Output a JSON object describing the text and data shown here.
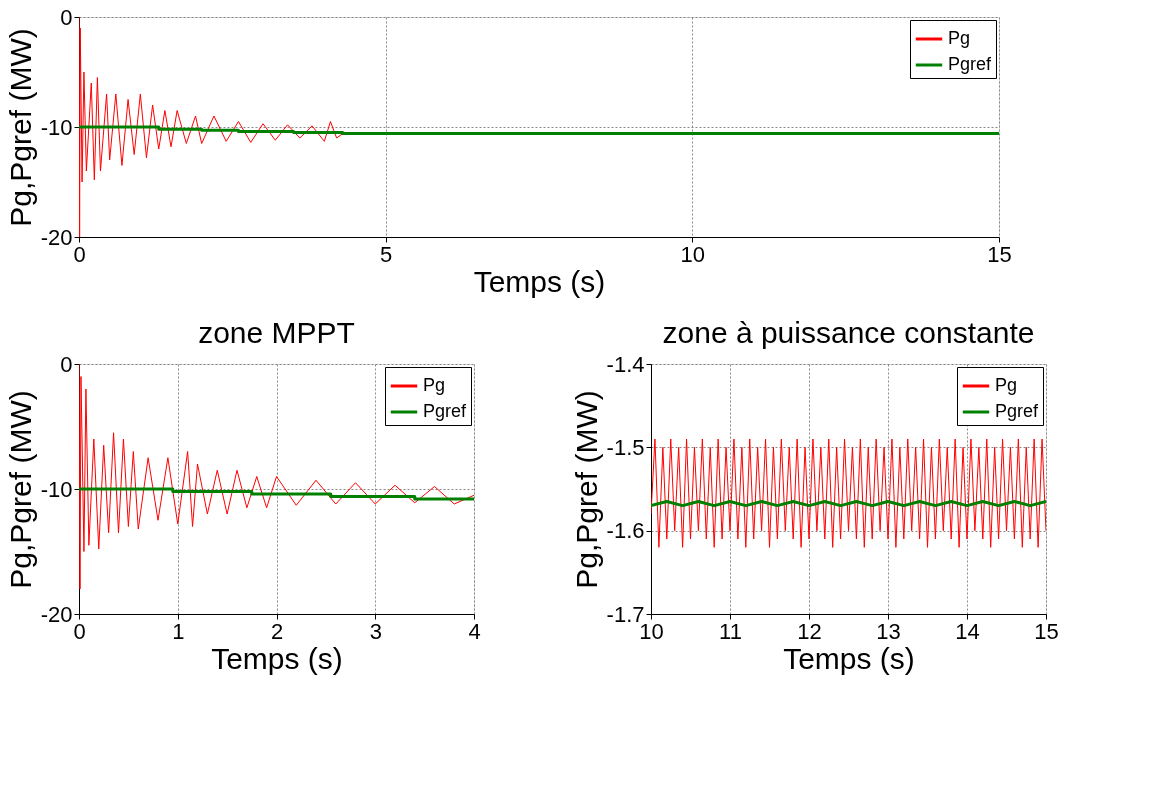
{
  "chart_data": [
    {
      "type": "line",
      "xlabel": "Temps (s)",
      "ylabel": "Pg,Pgref (MW)",
      "xlim": [
        0,
        15
      ],
      "xticks": [
        0,
        5,
        10,
        15
      ],
      "ylim": [
        -20,
        0
      ],
      "yticks": [
        -20,
        -10,
        0
      ],
      "grid": true,
      "legend": "top right",
      "series": [
        {
          "name": "Pg",
          "color": "#ff0000",
          "x": [
            0,
            0.01,
            0.02,
            0.05,
            0.08,
            0.12,
            0.2,
            0.25,
            0.3,
            0.35,
            0.45,
            0.5,
            0.6,
            0.7,
            0.8,
            0.9,
            1.0,
            1.1,
            1.2,
            1.3,
            1.4,
            1.5,
            1.6,
            1.75,
            1.9,
            2.0,
            2.2,
            2.4,
            2.6,
            2.8,
            3.0,
            3.2,
            3.4,
            3.6,
            3.8,
            4.0,
            4.1,
            4.2,
            4.3
          ],
          "values": [
            0,
            -20,
            -1,
            -15,
            -5,
            -14,
            -6,
            -14.8,
            -5.5,
            -14,
            -7,
            -13,
            -7,
            -13.5,
            -7.5,
            -12.5,
            -7,
            -12.8,
            -8,
            -12,
            -8.5,
            -11.8,
            -8.5,
            -11.5,
            -9,
            -11.5,
            -9,
            -11.3,
            -9.5,
            -11.4,
            -9.7,
            -11.2,
            -9.8,
            -11,
            -9.9,
            -11.3,
            -9.5,
            -11,
            -10.6
          ]
        },
        {
          "name": "Pgref",
          "color": "#008000",
          "x": [
            0,
            1.3,
            1.3,
            2.0,
            2.0,
            2.6,
            2.6,
            3.5,
            3.5,
            4.3,
            4.3,
            15
          ],
          "values": [
            -10,
            -10,
            -10.2,
            -10.2,
            -10.3,
            -10.3,
            -10.4,
            -10.4,
            -10.5,
            -10.5,
            -10.6,
            -10.6
          ]
        }
      ]
    },
    {
      "type": "line",
      "title": "zone MPPT",
      "xlabel": "Temps (s)",
      "ylabel": "Pg,Pgref (MW)",
      "xlim": [
        0,
        4
      ],
      "xticks": [
        0,
        1,
        2,
        3,
        4
      ],
      "ylim": [
        -20,
        0
      ],
      "yticks": [
        -20,
        -10,
        0
      ],
      "grid": true,
      "legend": "top right",
      "series": [
        {
          "name": "Pg",
          "color": "#ff0000",
          "x": [
            0,
            0.01,
            0.02,
            0.05,
            0.07,
            0.1,
            0.15,
            0.2,
            0.25,
            0.3,
            0.35,
            0.4,
            0.45,
            0.5,
            0.55,
            0.6,
            0.7,
            0.8,
            0.9,
            1.0,
            1.1,
            1.15,
            1.2,
            1.3,
            1.4,
            1.5,
            1.6,
            1.7,
            1.8,
            1.9,
            2.0,
            2.2,
            2.4,
            2.6,
            2.8,
            3.0,
            3.2,
            3.4,
            3.6,
            3.8,
            4.0
          ],
          "values": [
            0,
            -18,
            -1,
            -15,
            -2,
            -14.5,
            -6,
            -14.8,
            -6.5,
            -13.5,
            -5.5,
            -13.5,
            -6,
            -13,
            -7,
            -13.2,
            -7.5,
            -12.5,
            -7.5,
            -12.8,
            -7,
            -13,
            -8,
            -12,
            -8.5,
            -12,
            -8.5,
            -11.5,
            -9,
            -11.5,
            -9,
            -11.3,
            -9.3,
            -11.2,
            -9.5,
            -11.2,
            -9.7,
            -11.1,
            -9.8,
            -11.2,
            -10.5
          ]
        },
        {
          "name": "Pgref",
          "color": "#008000",
          "x": [
            0,
            0.95,
            0.95,
            1.75,
            1.75,
            2.55,
            2.55,
            3.4,
            3.4,
            4.0
          ],
          "values": [
            -10,
            -10,
            -10.2,
            -10.2,
            -10.4,
            -10.4,
            -10.6,
            -10.6,
            -10.8,
            -10.8
          ]
        }
      ]
    },
    {
      "type": "line",
      "title": "zone à puissance constante",
      "xlabel": "Temps (s)",
      "ylabel": "Pg,Pgref (MW)",
      "xlim": [
        10,
        15
      ],
      "xticks": [
        10,
        11,
        12,
        13,
        14,
        15
      ],
      "ylim": [
        -1.7,
        -1.4
      ],
      "yticks": [
        -1.7,
        -1.6,
        -1.5,
        -1.4
      ],
      "grid": true,
      "legend": "top right",
      "series": [
        {
          "name": "Pg",
          "color": "#ff0000",
          "x": [
            10.0,
            10.05,
            10.1,
            10.15,
            10.2,
            10.25,
            10.3,
            10.35,
            10.4,
            10.45,
            10.5,
            10.55,
            10.6,
            10.65,
            10.7,
            10.75,
            10.8,
            10.85,
            10.9,
            10.95,
            11.0,
            11.05,
            11.1,
            11.15,
            11.2,
            11.25,
            11.3,
            11.35,
            11.4,
            11.45,
            11.5,
            11.55,
            11.6,
            11.65,
            11.7,
            11.75,
            11.8,
            11.85,
            11.9,
            11.95,
            12.0,
            12.05,
            12.1,
            12.15,
            12.2,
            12.25,
            12.3,
            12.35,
            12.4,
            12.45,
            12.5,
            12.55,
            12.6,
            12.65,
            12.7,
            12.75,
            12.8,
            12.85,
            12.9,
            12.95,
            13.0,
            13.05,
            13.1,
            13.15,
            13.2,
            13.25,
            13.3,
            13.35,
            13.4,
            13.45,
            13.5,
            13.55,
            13.6,
            13.65,
            13.7,
            13.75,
            13.8,
            13.85,
            13.9,
            13.95,
            14.0,
            14.05,
            14.1,
            14.15,
            14.2,
            14.25,
            14.3,
            14.35,
            14.4,
            14.45,
            14.5,
            14.55,
            14.6,
            14.65,
            14.7,
            14.75,
            14.8,
            14.85,
            14.9,
            14.95,
            15.0
          ],
          "values": [
            -1.58,
            -1.49,
            -1.62,
            -1.5,
            -1.61,
            -1.49,
            -1.6,
            -1.5,
            -1.62,
            -1.49,
            -1.61,
            -1.5,
            -1.6,
            -1.49,
            -1.61,
            -1.5,
            -1.62,
            -1.49,
            -1.61,
            -1.5,
            -1.6,
            -1.49,
            -1.61,
            -1.5,
            -1.62,
            -1.49,
            -1.61,
            -1.5,
            -1.6,
            -1.49,
            -1.62,
            -1.5,
            -1.61,
            -1.49,
            -1.6,
            -1.5,
            -1.61,
            -1.49,
            -1.62,
            -1.5,
            -1.61,
            -1.49,
            -1.6,
            -1.5,
            -1.61,
            -1.49,
            -1.62,
            -1.5,
            -1.61,
            -1.49,
            -1.6,
            -1.5,
            -1.61,
            -1.49,
            -1.62,
            -1.5,
            -1.61,
            -1.49,
            -1.6,
            -1.5,
            -1.61,
            -1.49,
            -1.62,
            -1.5,
            -1.61,
            -1.49,
            -1.6,
            -1.5,
            -1.61,
            -1.49,
            -1.62,
            -1.5,
            -1.61,
            -1.49,
            -1.6,
            -1.5,
            -1.61,
            -1.49,
            -1.62,
            -1.5,
            -1.61,
            -1.49,
            -1.6,
            -1.5,
            -1.61,
            -1.49,
            -1.62,
            -1.5,
            -1.61,
            -1.49,
            -1.6,
            -1.5,
            -1.61,
            -1.49,
            -1.62,
            -1.5,
            -1.61,
            -1.49,
            -1.62,
            -1.49,
            -1.6
          ]
        },
        {
          "name": "Pgref",
          "color": "#008000",
          "x": [
            10.0,
            10.2,
            10.4,
            10.6,
            10.8,
            11.0,
            11.2,
            11.4,
            11.6,
            11.8,
            12.0,
            12.2,
            12.4,
            12.6,
            12.8,
            13.0,
            13.2,
            13.4,
            13.6,
            13.8,
            14.0,
            14.2,
            14.4,
            14.6,
            14.8,
            15.0
          ],
          "values": [
            -1.57,
            -1.565,
            -1.57,
            -1.565,
            -1.57,
            -1.565,
            -1.57,
            -1.565,
            -1.57,
            -1.565,
            -1.57,
            -1.565,
            -1.57,
            -1.565,
            -1.57,
            -1.565,
            -1.57,
            -1.565,
            -1.57,
            -1.565,
            -1.57,
            -1.565,
            -1.57,
            -1.565,
            -1.57,
            -1.565
          ]
        }
      ]
    }
  ]
}
